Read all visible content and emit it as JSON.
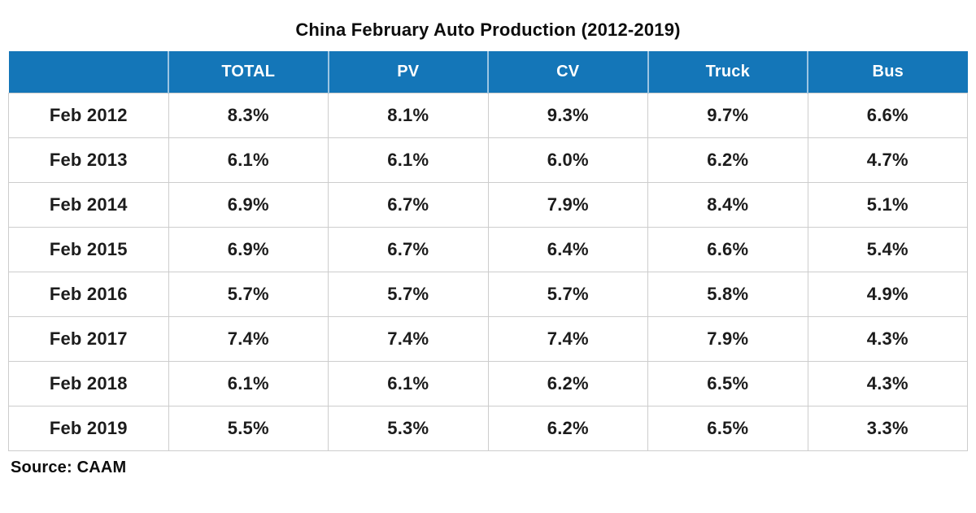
{
  "title": "China February Auto Production (2012-2019)",
  "source_note": "Source: CAAM",
  "colors": {
    "header_bg": "#1476b8",
    "header_text": "#ffffff",
    "header_divider": "#9cc5e2",
    "cell_border": "#cdcdcd",
    "text": "#0d0d0d",
    "background": "#ffffff"
  },
  "table": {
    "columns": [
      "",
      "TOTAL",
      "PV",
      "CV",
      "Truck",
      "Bus"
    ],
    "rows": [
      {
        "label": "Feb 2012",
        "cells": [
          "8.3%",
          "8.1%",
          "9.3%",
          "9.7%",
          "6.6%"
        ]
      },
      {
        "label": "Feb 2013",
        "cells": [
          "6.1%",
          "6.1%",
          "6.0%",
          "6.2%",
          "4.7%"
        ]
      },
      {
        "label": "Feb 2014",
        "cells": [
          "6.9%",
          "6.7%",
          "7.9%",
          "8.4%",
          "5.1%"
        ]
      },
      {
        "label": "Feb 2015",
        "cells": [
          "6.9%",
          "6.7%",
          "6.4%",
          "6.6%",
          "5.4%"
        ]
      },
      {
        "label": "Feb 2016",
        "cells": [
          "5.7%",
          "5.7%",
          "5.7%",
          "5.8%",
          "4.9%"
        ]
      },
      {
        "label": "Feb 2017",
        "cells": [
          "7.4%",
          "7.4%",
          "7.4%",
          "7.9%",
          "4.3%"
        ]
      },
      {
        "label": "Feb 2018",
        "cells": [
          "6.1%",
          "6.1%",
          "6.2%",
          "6.5%",
          "4.3%"
        ]
      },
      {
        "label": "Feb 2019",
        "cells": [
          "5.5%",
          "5.3%",
          "6.2%",
          "6.5%",
          "3.3%"
        ]
      }
    ]
  },
  "chart_data": {
    "type": "table",
    "title": "China February Auto Production (2012-2019)",
    "columns": [
      "TOTAL",
      "PV",
      "CV",
      "Truck",
      "Bus"
    ],
    "row_labels": [
      "Feb 2012",
      "Feb 2013",
      "Feb 2014",
      "Feb 2015",
      "Feb 2016",
      "Feb 2017",
      "Feb 2018",
      "Feb 2019"
    ],
    "unit": "percent",
    "series": [
      {
        "name": "TOTAL",
        "values": [
          8.3,
          6.1,
          6.9,
          6.9,
          5.7,
          7.4,
          6.1,
          5.5
        ]
      },
      {
        "name": "PV",
        "values": [
          8.1,
          6.1,
          6.7,
          6.7,
          5.7,
          7.4,
          6.1,
          5.3
        ]
      },
      {
        "name": "CV",
        "values": [
          9.3,
          6.0,
          7.9,
          6.4,
          5.7,
          7.4,
          6.2,
          6.2
        ]
      },
      {
        "name": "Truck",
        "values": [
          9.7,
          6.2,
          8.4,
          6.6,
          5.8,
          7.9,
          6.5,
          6.5
        ]
      },
      {
        "name": "Bus",
        "values": [
          6.6,
          4.7,
          5.1,
          5.4,
          4.9,
          4.3,
          4.3,
          3.3
        ]
      }
    ],
    "source": "CAAM",
    "legend_position": "none",
    "grid": true
  }
}
